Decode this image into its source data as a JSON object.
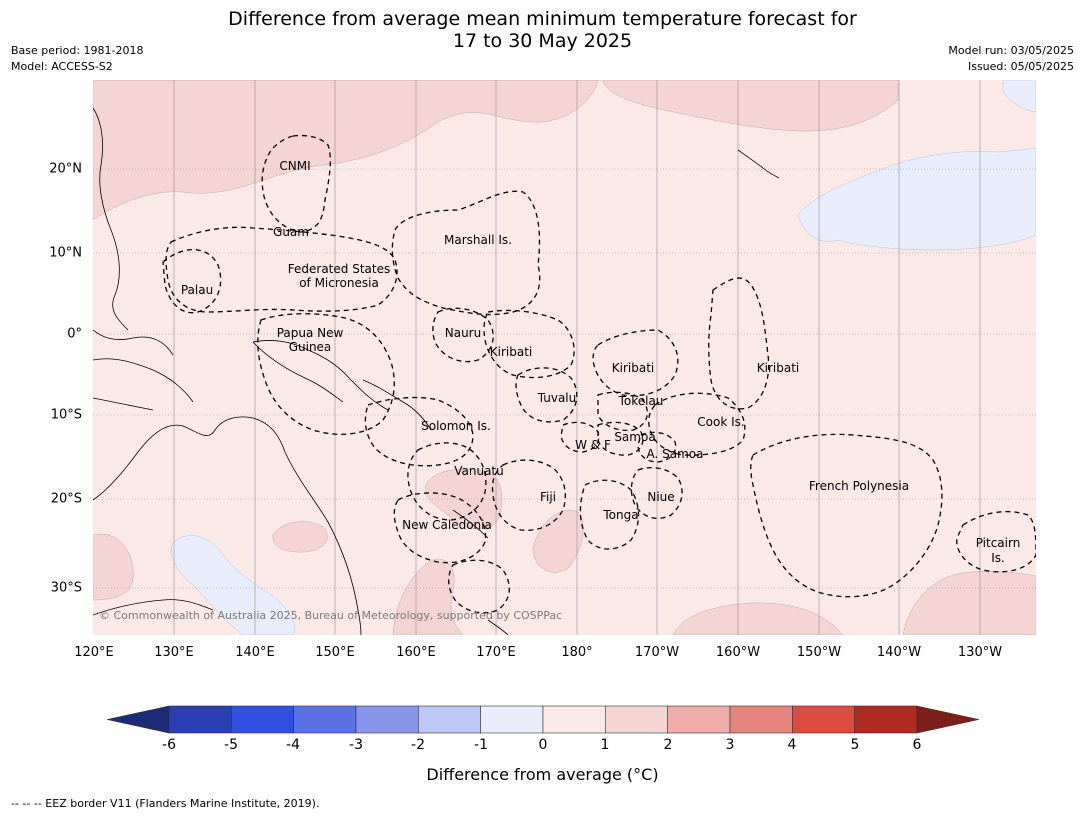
{
  "title_line1": "Difference from average mean minimum temperature forecast for",
  "title_line2": "17 to 30 May 2025",
  "base_period": "Base period: 1981-2018",
  "model": "Model: ACCESS-S2",
  "model_run": "Model run: 03/05/2025",
  "issued": "Issued: 05/05/2025",
  "copyright": "© Commonwealth of Australia 2025, Bureau of Meteorology, supported by COSPPac",
  "footer": "--  --  -- EEZ border V11 (Flanders Marine Institute, 2019).",
  "colorbar_label": "Difference from average (°C)",
  "lat_labels": [
    "20°N",
    "10°N",
    "0°",
    "10°S",
    "20°S",
    "30°S"
  ],
  "lon_labels": [
    "120°E",
    "130°E",
    "140°E",
    "150°E",
    "160°E",
    "170°E",
    "180°",
    "170°W",
    "160°W",
    "150°W",
    "140°W",
    "130°W"
  ],
  "colorbar_ticks": [
    "-6",
    "-5",
    "-4",
    "-3",
    "-2",
    "-1",
    "0",
    "1",
    "2",
    "3",
    "4",
    "5",
    "6"
  ],
  "colors": {
    "bins": [
      "#2a3fb3",
      "#3150e0",
      "#5a72e6",
      "#8796ec",
      "#bfc8f4",
      "#e9ecfb",
      "#fbe9e8",
      "#f5d5d3",
      "#efada9",
      "#e5847f",
      "#db4b40",
      "#ae2a22"
    ],
    "under": "#1e2a7a",
    "over": "#7a1f1a",
    "map_base": "#fbe9e8",
    "map_warm": "#f5d5d3",
    "map_cool": "#e9ecfb"
  },
  "regions": {
    "cnmi": "CNMI",
    "guam": "Guam",
    "marshall": "Marshall Is.",
    "fsm1": "Federated States",
    "fsm2": "of Micronesia",
    "palau": "Palau",
    "png1": "Papua New",
    "png2": "Guinea",
    "nauru": "Nauru",
    "kiribati_w": "Kiribati",
    "kiribati_c": "Kiribati",
    "kiribati_e": "Kiribati",
    "tuvalu": "Tuvalu",
    "tokelau": "Tokelau",
    "cook": "Cook Is.",
    "solomon": "Solomon Is.",
    "samoa": "Samoa",
    "wf": "W & F",
    "asamoa": "A. Samoa",
    "vanuatu": "Vanuatu",
    "fiji": "Fiji",
    "niue": "Niue",
    "tonga": "Tonga",
    "newcal": "New Caledonia",
    "frpoly": "French Polynesia",
    "pitcairn1": "Pitcairn",
    "pitcairn2": "Is."
  }
}
